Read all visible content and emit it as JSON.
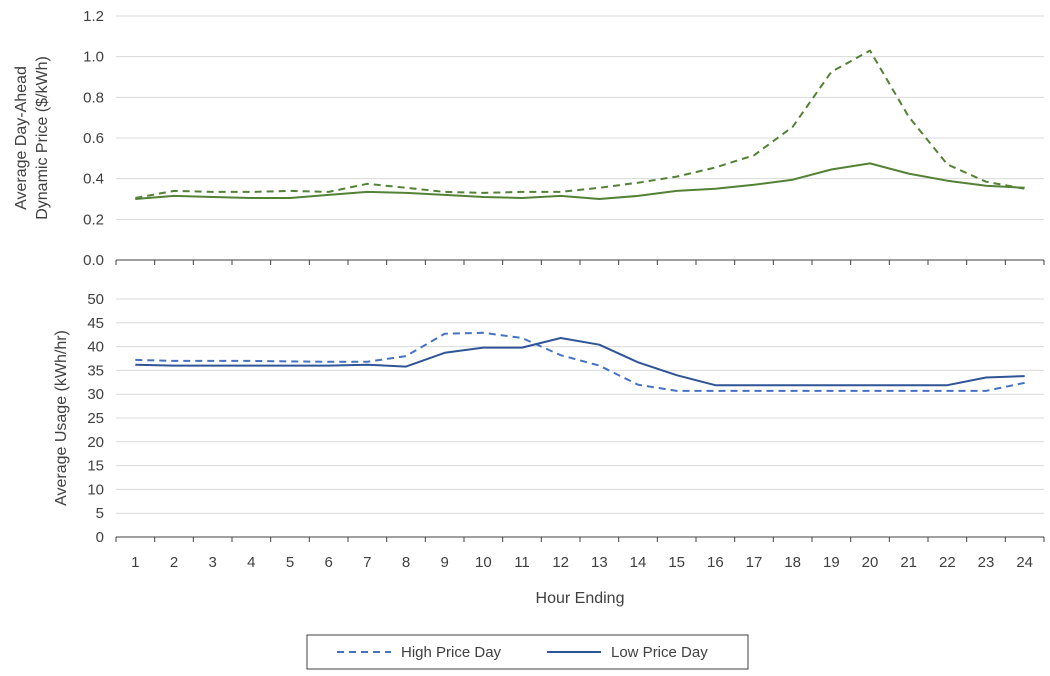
{
  "chart_data": [
    {
      "type": "line",
      "ylabel_lines": [
        "Average Day-Ahead",
        "Dynamic Price ($/kWh)"
      ],
      "ylim": [
        0,
        1.2
      ],
      "yticks": [
        "0.0",
        "0.2",
        "0.4",
        "0.6",
        "0.8",
        "1.0",
        "1.2"
      ],
      "ytick_values": [
        0,
        0.2,
        0.4,
        0.6,
        0.8,
        1.0,
        1.2
      ],
      "x": [
        1,
        2,
        3,
        4,
        5,
        6,
        7,
        8,
        9,
        10,
        11,
        12,
        13,
        14,
        15,
        16,
        17,
        18,
        19,
        20,
        21,
        22,
        23,
        24
      ],
      "series": [
        {
          "key": "high",
          "color": "#538135",
          "dashed": true,
          "values": [
            0.305,
            0.34,
            0.335,
            0.335,
            0.34,
            0.335,
            0.375,
            0.355,
            0.335,
            0.33,
            0.335,
            0.335,
            0.355,
            0.38,
            0.41,
            0.455,
            0.515,
            0.655,
            0.925,
            1.03,
            0.705,
            0.47,
            0.385,
            0.35
          ]
        },
        {
          "key": "low",
          "color": "#538135",
          "dashed": false,
          "values": [
            0.3,
            0.315,
            0.31,
            0.305,
            0.305,
            0.32,
            0.335,
            0.33,
            0.32,
            0.31,
            0.305,
            0.315,
            0.3,
            0.315,
            0.34,
            0.35,
            0.37,
            0.395,
            0.445,
            0.475,
            0.425,
            0.39,
            0.365,
            0.355
          ]
        }
      ]
    },
    {
      "type": "line",
      "ylabel": "Average Usage (kWh/hr)",
      "ylim": [
        0,
        50
      ],
      "yticks": [
        "0",
        "5",
        "10",
        "15",
        "20",
        "25",
        "30",
        "35",
        "40",
        "45",
        "50"
      ],
      "ytick_values": [
        0,
        5,
        10,
        15,
        20,
        25,
        30,
        35,
        40,
        45,
        50
      ],
      "x": [
        1,
        2,
        3,
        4,
        5,
        6,
        7,
        8,
        9,
        10,
        11,
        12,
        13,
        14,
        15,
        16,
        17,
        18,
        19,
        20,
        21,
        22,
        23,
        24
      ],
      "xlabel": "Hour Ending",
      "xticks": [
        "1",
        "2",
        "3",
        "4",
        "5",
        "6",
        "7",
        "8",
        "9",
        "10",
        "11",
        "12",
        "13",
        "14",
        "15",
        "16",
        "17",
        "18",
        "19",
        "20",
        "21",
        "22",
        "23",
        "24"
      ],
      "series": [
        {
          "key": "high",
          "name": "High Price Day",
          "color": "#4472c4",
          "dashed": true,
          "values": [
            37.2,
            37.0,
            37.0,
            37.0,
            36.9,
            36.8,
            36.8,
            38.0,
            42.7,
            42.9,
            41.8,
            38.2,
            36.0,
            32.0,
            30.7,
            30.7,
            30.7,
            30.7,
            30.7,
            30.7,
            30.7,
            30.7,
            30.7,
            32.4
          ]
        },
        {
          "key": "low",
          "name": "Low Price Day",
          "color": "#2f5597",
          "dashed": false,
          "values": [
            36.2,
            36.0,
            36.0,
            36.0,
            36.0,
            36.0,
            36.2,
            35.8,
            38.7,
            39.8,
            39.8,
            41.8,
            40.4,
            36.7,
            34.0,
            31.9,
            31.9,
            31.9,
            31.9,
            31.9,
            31.9,
            31.9,
            33.5,
            33.8
          ]
        }
      ]
    }
  ],
  "legend": {
    "items": [
      {
        "label": "High Price Day",
        "color": "#4472c4",
        "dashed": true
      },
      {
        "label": "Low Price Day",
        "color": "#2f5597",
        "dashed": false
      }
    ]
  }
}
